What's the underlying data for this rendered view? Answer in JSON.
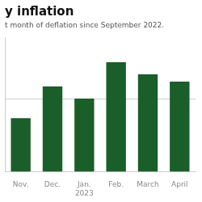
{
  "chart_data": {
    "type": "bar",
    "title": "y inflation",
    "subtitle": "t month of deflation since September 2022.",
    "categories": [
      "Nov.",
      "Dec.",
      "Jan.\n2023",
      "Feb.",
      "March",
      "April"
    ],
    "values": [
      2.2,
      3.5,
      3.0,
      4.5,
      4.0,
      3.7
    ],
    "color": "#1a5e2a",
    "ylim": [
      0,
      5.5
    ],
    "yticks": [
      3
    ],
    "grid": true,
    "tick_labels": "x"
  }
}
